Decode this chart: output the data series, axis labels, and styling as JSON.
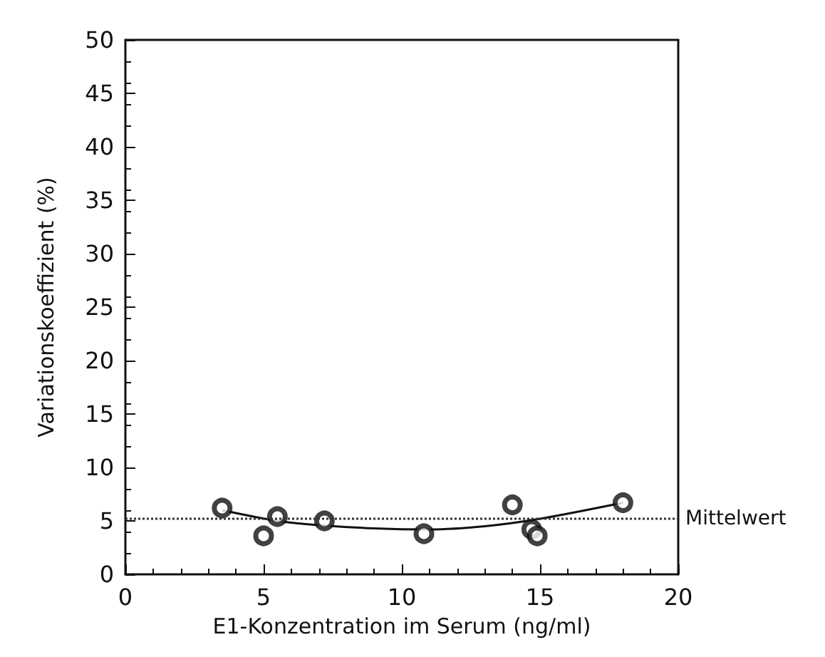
{
  "chart_data": {
    "type": "scatter",
    "xlabel": "E1-Konzentration im Serum (ng/ml)",
    "ylabel": "Variationskoeffizient (%)",
    "xlim": [
      0,
      20
    ],
    "xticks": [
      0,
      5,
      10,
      15,
      20
    ],
    "ylim": [
      0,
      50
    ],
    "yticks": [
      0,
      5,
      10,
      15,
      20,
      25,
      30,
      35,
      40,
      45,
      50
    ],
    "grid": false,
    "marker": "circle",
    "series": [
      {
        "color": "#111111",
        "x": [
          3.5,
          5.0,
          5.5,
          7.2,
          10.8,
          14.0,
          14.7,
          14.9,
          18.0
        ],
        "values": [
          6.2,
          3.6,
          5.4,
          5.0,
          3.8,
          6.5,
          4.2,
          3.6,
          6.7
        ]
      },
      {
        "type": "line",
        "color": "#111111",
        "line_style": "solid",
        "marker": "none",
        "x": [
          3.5,
          5.5,
          7,
          9,
          11,
          13,
          15,
          18
        ],
        "values": [
          6.0,
          5.0,
          4.6,
          4.3,
          4.2,
          4.5,
          5.2,
          6.7
        ]
      }
    ],
    "ref_lines": [
      {
        "axis": "y",
        "value": 5.2,
        "label": "Mittelwert",
        "color": "#333333",
        "line_style": "dotted"
      }
    ]
  }
}
